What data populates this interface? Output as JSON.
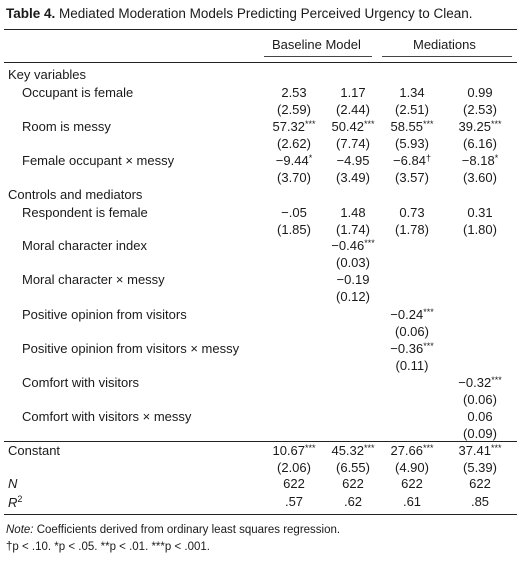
{
  "caption": {
    "table_no": "Table 4.",
    "title": "Mediated Moderation Models Predicting Perceived Urgency to Clean."
  },
  "headers": {
    "baseline": "Baseline Model",
    "mediations": "Mediations"
  },
  "sections": {
    "key": "Key variables",
    "controls": "Controls and mediators"
  },
  "rows": {
    "occupant_female": {
      "label": "Occupant is female",
      "coef": [
        "2.53",
        "1.17",
        "1.34",
        "0.99"
      ],
      "coef_sup": [
        "",
        "",
        "",
        ""
      ],
      "se": [
        "(2.59)",
        "(2.44)",
        "(2.51)",
        "(2.53)"
      ]
    },
    "room_messy": {
      "label": "Room is messy",
      "coef": [
        "57.32",
        "50.42",
        "58.55",
        "39.25"
      ],
      "coef_sup": [
        "***",
        "***",
        "***",
        "***"
      ],
      "se": [
        "(2.62)",
        "(7.74)",
        "(5.93)",
        "(6.16)"
      ]
    },
    "female_messy": {
      "label": "Female occupant × messy",
      "coef": [
        "−9.44",
        "−4.95",
        "−6.84",
        "−8.18"
      ],
      "coef_sup": [
        "*",
        "",
        "†",
        "*"
      ],
      "se": [
        "(3.70)",
        "(3.49)",
        "(3.57)",
        "(3.60)"
      ]
    },
    "respondent_female": {
      "label": "Respondent is female",
      "coef": [
        "−.05",
        "1.48",
        "0.73",
        "0.31"
      ],
      "coef_sup": [
        "",
        "",
        "",
        ""
      ],
      "se": [
        "(1.85)",
        "(1.74)",
        "(1.78)",
        "(1.80)"
      ]
    },
    "moral_index": {
      "label": "Moral character index",
      "coef": [
        "",
        "−0.46",
        "",
        ""
      ],
      "coef_sup": [
        "",
        "***",
        "",
        ""
      ],
      "se": [
        "",
        "(0.03)",
        "",
        ""
      ]
    },
    "moral_messy": {
      "label": "Moral character × messy",
      "coef": [
        "",
        "−0.19",
        "",
        ""
      ],
      "coef_sup": [
        "",
        "",
        "",
        ""
      ],
      "se": [
        "",
        "(0.12)",
        "",
        ""
      ]
    },
    "positive_opinion": {
      "label": "Positive opinion from visitors",
      "coef": [
        "",
        "",
        "−0.24",
        ""
      ],
      "coef_sup": [
        "",
        "",
        "***",
        ""
      ],
      "se": [
        "",
        "",
        "(0.06)",
        ""
      ]
    },
    "positive_messy": {
      "label": "Positive opinion from visitors × messy",
      "coef": [
        "",
        "",
        "−0.36",
        ""
      ],
      "coef_sup": [
        "",
        "",
        "***",
        ""
      ],
      "se": [
        "",
        "",
        "(0.11)",
        ""
      ]
    },
    "comfort": {
      "label": "Comfort with visitors",
      "coef": [
        "",
        "",
        "",
        "−0.32"
      ],
      "coef_sup": [
        "",
        "",
        "",
        "***"
      ],
      "se": [
        "",
        "",
        "",
        "(0.06)"
      ]
    },
    "comfort_messy": {
      "label": "Comfort with visitors × messy",
      "coef": [
        "",
        "",
        "",
        "0.06"
      ],
      "coef_sup": [
        "",
        "",
        "",
        ""
      ],
      "se": [
        "",
        "",
        "",
        "(0.09)"
      ]
    },
    "constant": {
      "label": "Constant",
      "coef": [
        "10.67",
        "45.32",
        "27.66",
        "37.41"
      ],
      "coef_sup": [
        "***",
        "***",
        "***",
        "***"
      ],
      "se": [
        "(2.06)",
        "(6.55)",
        "(4.90)",
        "(5.39)"
      ]
    }
  },
  "stats": {
    "n": {
      "label": "N",
      "values": [
        "622",
        "622",
        "622",
        "622"
      ]
    },
    "r2": {
      "label": "R",
      "label_sup": "2",
      "values": [
        ".57",
        ".62",
        ".61",
        ".85"
      ]
    }
  },
  "note": {
    "prefix": "Note:",
    "text": " Coefficients derived from ordinary least squares regression.",
    "sig": "†p < .10. *p < .05. **p < .01. ***p < .001."
  }
}
